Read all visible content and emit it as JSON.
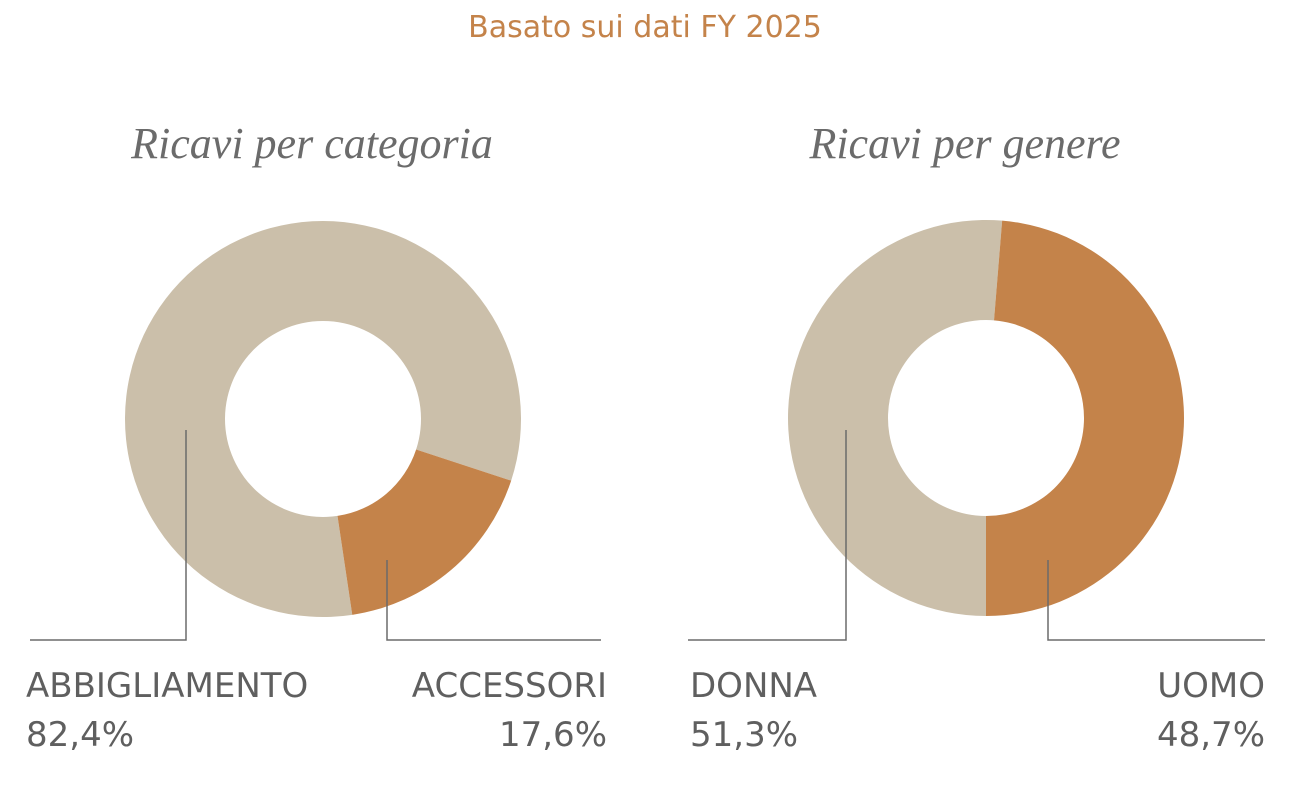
{
  "subtitle": "Basato sui dati FY 2025",
  "chart_data": [
    {
      "type": "donut",
      "title": "Ricavi per categoria",
      "categories": [
        "ABBIGLIAMENTO",
        "ACCESSORI"
      ],
      "values": [
        82.4,
        17.6
      ],
      "value_labels": [
        "82,4%",
        "17,6%"
      ],
      "colors": [
        "#cbbfaa",
        "#c4834a"
      ]
    },
    {
      "type": "donut",
      "title": "Ricavi per genere",
      "categories": [
        "DONNA",
        "UOMO"
      ],
      "values": [
        51.3,
        48.7
      ],
      "value_labels": [
        "51,3%",
        "48,7%"
      ],
      "colors": [
        "#cbbfaa",
        "#c4834a"
      ]
    }
  ]
}
